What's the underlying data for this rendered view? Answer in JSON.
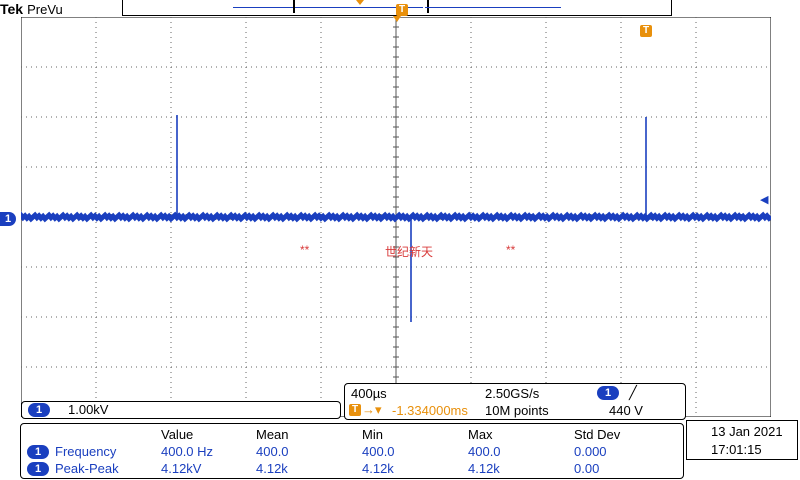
{
  "brand": {
    "logo": "Tek",
    "mode": "PreVu"
  },
  "channel": {
    "id": "1",
    "color": "#1a3fbf",
    "scale": "1.00kV"
  },
  "trigger": {
    "icon": "T",
    "color": "#e8900c"
  },
  "annotations": {
    "left": "**",
    "center": "世纪新天",
    "right": "**",
    "color": "#d83a3a"
  },
  "timing": {
    "timebase": "400µs",
    "sample_rate": "2.50GS/s",
    "trigger_channel": "1",
    "trigger_slope": "╱",
    "trigger_position_arrow": "→▾",
    "trigger_position": "-1.334000ms",
    "record_length": "10M points",
    "trigger_level": "440 V"
  },
  "measurements": {
    "headers": [
      "Value",
      "Mean",
      "Min",
      "Max",
      "Std Dev"
    ],
    "rows": [
      {
        "channel": "1",
        "name": "Frequency",
        "value": "400.0 Hz",
        "mean": "400.0",
        "min": "400.0",
        "max": "400.0",
        "stddev": "0.000"
      },
      {
        "channel": "1",
        "name": "Peak-Peak",
        "value": "4.12kV",
        "mean": "4.12k",
        "min": "4.12k",
        "max": "4.12k",
        "stddev": "0.00"
      }
    ]
  },
  "datetime": {
    "date": "13 Jan  2021",
    "time": "17:01:15"
  }
}
